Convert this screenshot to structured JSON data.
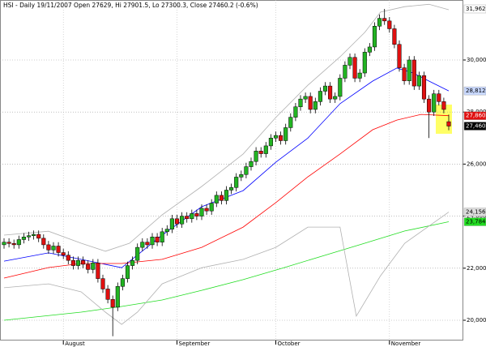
{
  "chart_data": {
    "type": "candlestick",
    "title": "HSI - Daily 19/11/2007 Open 27629, Hi 27901.5, Lo 27300.3, Close 27460.2 (-0.6%)",
    "categories": [
      null,
      null,
      null,
      null,
      null,
      null,
      null,
      null,
      null,
      null,
      null,
      null,
      "August",
      null,
      null,
      null,
      null,
      null,
      null,
      null,
      null,
      null,
      null,
      null,
      null,
      null,
      null,
      null,
      null,
      null,
      null,
      null,
      null,
      null,
      null,
      "September",
      null,
      null,
      null,
      null,
      null,
      null,
      null,
      null,
      null,
      null,
      null,
      null,
      null,
      null,
      null,
      null,
      null,
      null,
      null,
      "October",
      null,
      null,
      null,
      null,
      null,
      null,
      null,
      null,
      null,
      null,
      null,
      null,
      null,
      null,
      null,
      null,
      null,
      null,
      null,
      null,
      null,
      null,
      "November",
      null,
      null,
      null,
      null,
      null,
      null,
      null,
      null,
      null,
      null,
      null,
      null
    ],
    "open": [
      22900,
      23000,
      22950,
      22900,
      23100,
      23200,
      23250,
      23300,
      23150,
      22900,
      22700,
      22850,
      22600,
      22500,
      22300,
      22100,
      22300,
      22150,
      21950,
      22200,
      21600,
      21200,
      20800,
      20500,
      21300,
      21600,
      22100,
      22300,
      22800,
      23000,
      22900,
      23200,
      23000,
      23400,
      23500,
      23900,
      23700,
      24000,
      23900,
      24100,
      24000,
      24300,
      24200,
      24500,
      24800,
      24600,
      25000,
      25100,
      25500,
      25600,
      25900,
      26100,
      26500,
      26400,
      26700,
      27000,
      27100,
      26900,
      27400,
      27800,
      28200,
      28500,
      28600,
      28100,
      28400,
      28800,
      29000,
      28500,
      28600,
      29300,
      29800,
      30100,
      29300,
      29500,
      30300,
      30500,
      31300,
      31600,
      31500,
      31200,
      30600,
      29700,
      29200,
      30000,
      29000,
      29400,
      28500,
      28000,
      28700,
      28400,
      27629
    ],
    "high": [
      23150,
      23150,
      23100,
      23250,
      23350,
      23400,
      23450,
      23450,
      23300,
      23050,
      23000,
      23000,
      22750,
      22650,
      22450,
      22450,
      22450,
      22300,
      22350,
      22350,
      21750,
      21350,
      20950,
      21450,
      21750,
      22250,
      22450,
      22950,
      23150,
      23150,
      23350,
      23350,
      23550,
      23650,
      24050,
      24050,
      24150,
      24150,
      24250,
      24250,
      24450,
      24450,
      24650,
      24950,
      24950,
      25150,
      25250,
      25650,
      25750,
      26050,
      26250,
      26650,
      26650,
      26850,
      27150,
      27250,
      27250,
      27550,
      27950,
      28350,
      28650,
      28750,
      28750,
      28550,
      28950,
      29150,
      29150,
      28750,
      29450,
      29950,
      30250,
      30250,
      29650,
      30450,
      30650,
      31450,
      31750,
      31962.1,
      31650,
      31350,
      30750,
      29850,
      30150,
      30150,
      29550,
      29550,
      28650,
      28850,
      28850,
      28550,
      27901.5
    ],
    "low": [
      22750,
      22800,
      22750,
      22750,
      22950,
      23050,
      23100,
      23000,
      22750,
      22550,
      22550,
      22450,
      22350,
      22150,
      21950,
      21950,
      22000,
      21800,
      21800,
      21450,
      21050,
      20650,
      19386,
      20350,
      21150,
      21450,
      21950,
      22150,
      22650,
      22750,
      22750,
      22850,
      22850,
      23250,
      23350,
      23550,
      23550,
      23750,
      23750,
      23850,
      23850,
      24050,
      24050,
      24350,
      24450,
      24450,
      24850,
      24950,
      25350,
      25450,
      25750,
      25950,
      26250,
      26250,
      26550,
      26850,
      26750,
      26750,
      27250,
      27650,
      28050,
      28350,
      27950,
      27950,
      28250,
      28650,
      28350,
      28350,
      28450,
      29150,
      29650,
      29150,
      29150,
      29350,
      30150,
      30350,
      31150,
      31350,
      31050,
      30450,
      29550,
      29050,
      29050,
      28850,
      28850,
      28350,
      27000,
      27850,
      28250,
      27950,
      27300.3
    ],
    "close": [
      23000,
      22950,
      22900,
      23100,
      23200,
      23250,
      23300,
      23150,
      22900,
      22700,
      22850,
      22600,
      22500,
      22300,
      22100,
      22300,
      22150,
      21950,
      22200,
      21600,
      21200,
      20800,
      20500,
      21300,
      21600,
      22100,
      22300,
      22800,
      23000,
      22900,
      23200,
      23000,
      23400,
      23500,
      23900,
      23700,
      24000,
      23900,
      24100,
      24000,
      24300,
      24200,
      24500,
      24800,
      24600,
      25000,
      25100,
      25500,
      25600,
      25900,
      26100,
      26500,
      26400,
      26700,
      27000,
      27100,
      26900,
      27400,
      27800,
      28200,
      28500,
      28600,
      28100,
      28400,
      28800,
      29000,
      28500,
      28600,
      29300,
      29800,
      30100,
      29300,
      29500,
      30300,
      30500,
      31300,
      31600,
      31500,
      31200,
      30600,
      29700,
      29200,
      30000,
      29000,
      29400,
      28500,
      28000,
      28700,
      28400,
      28100,
      27460.2
    ],
    "up_color": "#22b422",
    "down_color": "#e01010",
    "overlays": [
      {
        "color": "#0000ff",
        "x": [
          0,
          9,
          15.6,
          23.8,
          32,
          40,
          48.4,
          55,
          61.5,
          68,
          74.6,
          79.5,
          82.8,
          86,
          90
        ],
        "values": [
          22270,
          22590,
          22340,
          22020,
          23270,
          24360,
          24980,
          26070,
          27000,
          28320,
          29190,
          29690,
          29500,
          29190,
          28812.5
        ]
      },
      {
        "color": "#ff0000",
        "x": [
          0,
          9,
          15.6,
          23.8,
          32,
          40,
          48.4,
          55,
          61.5,
          68,
          74.6,
          79.5,
          84.4,
          90
        ],
        "values": [
          21620,
          22025,
          22180,
          22180,
          22340,
          22800,
          23580,
          24520,
          25510,
          26390,
          27320,
          27690,
          27910,
          27860.5
        ]
      },
      {
        "color": "#22dd22",
        "x": [
          0,
          15.6,
          23.8,
          32,
          40,
          48.4,
          56.6,
          64.8,
          73,
          81.1,
          90
        ],
        "values": [
          20000,
          20310,
          20530,
          20780,
          21150,
          21560,
          22020,
          22490,
          22960,
          23430,
          23784
        ]
      },
      {
        "color": "#b0b0b0",
        "x": [
          0,
          9,
          15.6,
          20.5,
          25.4,
          32,
          40,
          48.4,
          55,
          61.5,
          68,
          73,
          76.2,
          81.1,
          86,
          90
        ],
        "values": [
          23270,
          23420,
          22960,
          22650,
          22960,
          24050,
          25140,
          26390,
          27790,
          29030,
          30120,
          31060,
          31840,
          32050,
          32140,
          31930
        ]
      },
      {
        "color": "#b0b0b0",
        "x": [
          0,
          9,
          15.6,
          20.5,
          23.8,
          27,
          32,
          40,
          48.4,
          55,
          61.5,
          68,
          71.3,
          76.2,
          81.1,
          90
        ],
        "values": [
          21250,
          21400,
          21090,
          20310,
          19840,
          20310,
          21400,
          22020,
          22340,
          22800,
          23580,
          23580,
          20160,
          21710,
          22960,
          24156.3
        ]
      }
    ],
    "ylim": [
      19221,
      32305
    ],
    "yticks": [
      {
        "value": 20000,
        "label": "20,000"
      },
      {
        "value": 22000,
        "label": "22,000"
      },
      {
        "value": 24000,
        "label": "24,000"
      },
      {
        "value": 26000,
        "label": "26,000"
      },
      {
        "value": 28000,
        "label": "28,000"
      },
      {
        "value": 30000,
        "label": "30,000"
      }
    ],
    "price_tags": [
      {
        "value": 31962.1,
        "label": "31,962.1",
        "color": "#ffffff"
      },
      {
        "value": 28812.5,
        "label": "28,812.5",
        "color": "#c8d8ff"
      },
      {
        "value": 27860.5,
        "label": "27,860.5",
        "color": "#e01010"
      },
      {
        "value": 27460.2,
        "label": "27,460.2",
        "color": "#000000"
      },
      {
        "value": 24156.3,
        "label": "24,156.3",
        "color": "#dddddd"
      },
      {
        "value": 23784,
        "label": "23,784",
        "color": "#22dd22"
      }
    ]
  }
}
